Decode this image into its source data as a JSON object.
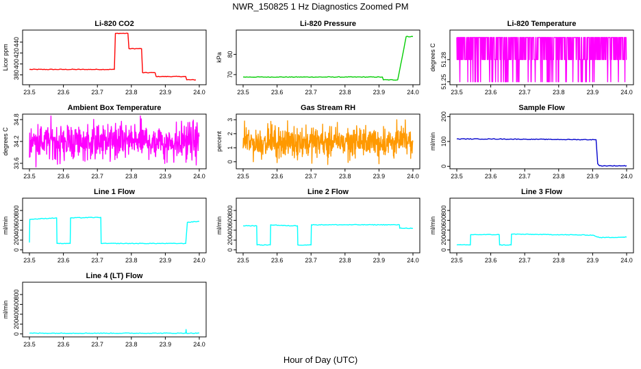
{
  "figure": {
    "title": "NWR_150825  1 Hz Diagnostics Zoomed PM",
    "xlabel": "Hour of Day (UTC)"
  },
  "chart_data": [
    {
      "type": "line",
      "title": "Li-820 CO2",
      "ylabel": "Licor ppm",
      "color": "#ff0000",
      "xlim": [
        23.5,
        24.0
      ],
      "ylim": [
        362,
        462
      ],
      "xticks": [
        "23.5",
        "23.6",
        "23.7",
        "23.8",
        "23.9",
        "24.0"
      ],
      "yticks": [
        380,
        400,
        420,
        440
      ],
      "series": [
        {
          "x": [
            23.5,
            23.6,
            23.7,
            23.75,
            23.753,
            23.79,
            23.793,
            23.83,
            23.833,
            23.87,
            23.873,
            23.96,
            23.963,
            23.99
          ],
          "y": [
            390,
            390,
            390,
            390,
            456,
            456,
            428,
            428,
            384,
            384,
            377,
            377,
            371,
            371
          ]
        }
      ]
    },
    {
      "type": "line",
      "title": "Li-820 Pressure",
      "ylabel": "kPa",
      "color": "#00cc00",
      "xlim": [
        23.5,
        24.0
      ],
      "ylim": [
        65,
        92
      ],
      "xticks": [
        "23.5",
        "23.6",
        "23.7",
        "23.8",
        "23.9",
        "24.0"
      ],
      "yticks": [
        70,
        80
      ],
      "series": [
        {
          "x": [
            23.5,
            23.6,
            23.7,
            23.8,
            23.91,
            23.913,
            23.955,
            23.97,
            23.98,
            24.0
          ],
          "y": [
            68.8,
            68.8,
            68.8,
            68.8,
            68.8,
            67.4,
            67.4,
            80,
            88.8,
            88.8
          ]
        }
      ]
    },
    {
      "type": "line",
      "title": "Li-820 Temperature",
      "ylabel": "degrees C",
      "color": "#ff00ff",
      "xlim": [
        23.5,
        24.0
      ],
      "ylim": [
        51.246,
        51.32
      ],
      "xticks": [
        "23.5",
        "23.6",
        "23.7",
        "23.8",
        "23.9",
        "24.0"
      ],
      "yticks": [
        51.25,
        51.28
      ],
      "series": [
        {
          "x": [
            23.5,
            24.0
          ],
          "y": [
            51.28,
            51.28
          ],
          "values_range": [
            51.25,
            51.31
          ]
        }
      ]
    },
    {
      "type": "line",
      "title": "Ambient Box Temperature",
      "ylabel": "degrees C",
      "color": "#ff00ff",
      "xlim": [
        23.5,
        24.0
      ],
      "ylim": [
        33.45,
        34.95
      ],
      "xticks": [
        "23.5",
        "23.6",
        "23.7",
        "23.8",
        "23.9",
        "24.0"
      ],
      "yticks": [
        33.6,
        34.2,
        34.8
      ],
      "series": [
        {
          "x": [
            23.5,
            24.0
          ],
          "y": [
            34.2,
            34.2
          ],
          "values_range": [
            33.5,
            34.9
          ]
        }
      ]
    },
    {
      "type": "line",
      "title": "Gas Stream RH",
      "ylabel": "percent",
      "color": "#ff9900",
      "xlim": [
        23.5,
        24.0
      ],
      "ylim": [
        -0.5,
        3.4
      ],
      "xticks": [
        "23.5",
        "23.6",
        "23.7",
        "23.8",
        "23.9",
        "24.0"
      ],
      "yticks": [
        0,
        1,
        2,
        3
      ],
      "series": [
        {
          "x": [
            23.5,
            24.0
          ],
          "y": [
            1.5,
            1.5
          ],
          "values_range": [
            -0.2,
            3.0
          ]
        }
      ]
    },
    {
      "type": "line",
      "title": "Sample Flow",
      "ylabel": "ml/min",
      "color": "#0000cc",
      "xlim": [
        23.5,
        24.0
      ],
      "ylim": [
        -10,
        210
      ],
      "xticks": [
        "23.5",
        "23.6",
        "23.7",
        "23.8",
        "23.9",
        "24.0"
      ],
      "yticks": [
        0,
        100,
        200
      ],
      "series": [
        {
          "x": [
            23.5,
            23.6,
            23.7,
            23.8,
            23.91,
            23.915,
            23.92,
            24.0
          ],
          "y": [
            110,
            110,
            109,
            108,
            107,
            10,
            2,
            2
          ]
        }
      ]
    },
    {
      "type": "line",
      "title": "Line 1 Flow",
      "ylabel": "ml/min",
      "color": "#00ffff",
      "xlim": [
        23.5,
        24.0
      ],
      "ylim": [
        -60,
        1050
      ],
      "xticks": [
        "23.5",
        "23.6",
        "23.7",
        "23.8",
        "23.9",
        "24.0"
      ],
      "yticks": [
        0,
        200,
        400,
        600,
        800
      ],
      "series": [
        {
          "x": [
            23.5,
            23.501,
            23.58,
            23.581,
            23.62,
            23.621,
            23.71,
            23.711,
            23.96,
            23.965,
            24.0
          ],
          "y": [
            150,
            620,
            650,
            130,
            130,
            650,
            660,
            130,
            130,
            560,
            580
          ]
        }
      ]
    },
    {
      "type": "line",
      "title": "Line 2 Flow",
      "ylabel": "ml/min",
      "color": "#00ffff",
      "xlim": [
        23.5,
        24.0
      ],
      "ylim": [
        -60,
        1050
      ],
      "xticks": [
        "23.5",
        "23.6",
        "23.7",
        "23.8",
        "23.9",
        "24.0"
      ],
      "yticks": [
        0,
        200,
        400,
        600,
        800
      ],
      "series": [
        {
          "x": [
            23.5,
            23.54,
            23.541,
            23.58,
            23.581,
            23.63,
            23.66,
            23.661,
            23.7,
            23.701,
            23.96,
            23.961,
            24.0
          ],
          "y": [
            490,
            490,
            100,
            100,
            510,
            490,
            490,
            100,
            100,
            510,
            510,
            440,
            440
          ]
        }
      ]
    },
    {
      "type": "line",
      "title": "Line 3 Flow",
      "ylabel": "ml/min",
      "color": "#00ffff",
      "xlim": [
        23.5,
        24.0
      ],
      "ylim": [
        -60,
        1050
      ],
      "xticks": [
        "23.5",
        "23.6",
        "23.7",
        "23.8",
        "23.9",
        "24.0"
      ],
      "yticks": [
        0,
        200,
        400,
        600,
        800
      ],
      "series": [
        {
          "x": [
            23.5,
            23.54,
            23.541,
            23.625,
            23.626,
            23.66,
            23.661,
            23.9,
            23.92,
            24.0
          ],
          "y": [
            100,
            100,
            310,
            310,
            100,
            100,
            320,
            300,
            250,
            260
          ]
        }
      ]
    },
    {
      "type": "line",
      "title": "Line 4 (LT) Flow",
      "ylabel": "ml/min",
      "color": "#00ffff",
      "xlim": [
        23.5,
        24.0
      ],
      "ylim": [
        -60,
        1050
      ],
      "xticks": [
        "23.5",
        "23.6",
        "23.7",
        "23.8",
        "23.9",
        "24.0"
      ],
      "yticks": [
        0,
        200,
        400,
        600,
        800
      ],
      "series": [
        {
          "x": [
            23.5,
            23.96,
            23.961,
            23.962,
            24.0
          ],
          "y": [
            15,
            15,
            90,
            15,
            15
          ]
        }
      ]
    }
  ]
}
